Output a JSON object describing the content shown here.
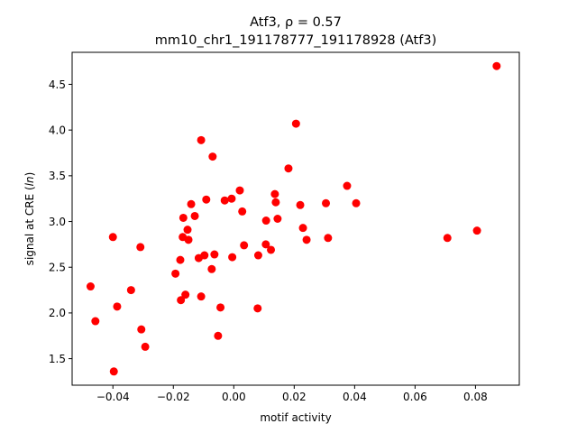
{
  "chart_data": {
    "type": "scatter",
    "title": "Atf3, ρ = 0.57",
    "subtitle": "mm10_chr1_191178777_191178928 (Atf3)",
    "xlabel": "motif activity",
    "ylabel": "signal at CRE (ln)",
    "xlim": [
      -0.0535,
      0.0945
    ],
    "ylim": [
      1.21,
      4.85
    ],
    "xticks": [
      -0.04,
      -0.02,
      0.0,
      0.02,
      0.04,
      0.06,
      0.08
    ],
    "xtick_labels": [
      "−0.04",
      "−0.02",
      "0.00",
      "0.02",
      "0.04",
      "0.06",
      "0.08"
    ],
    "yticks": [
      1.5,
      2.0,
      2.5,
      3.0,
      3.5,
      4.0,
      4.5
    ],
    "ytick_labels": [
      "1.5",
      "2.0",
      "2.5",
      "3.0",
      "3.5",
      "4.0",
      "4.5"
    ],
    "grid": false,
    "marker_color": "#ff0000",
    "series": [
      {
        "points": [
          {
            "x": -0.0474,
            "y": 2.29
          },
          {
            "x": -0.0458,
            "y": 1.91
          },
          {
            "x": -0.04,
            "y": 2.83
          },
          {
            "x": -0.0397,
            "y": 1.36
          },
          {
            "x": -0.0386,
            "y": 2.07
          },
          {
            "x": -0.034,
            "y": 2.25
          },
          {
            "x": -0.0309,
            "y": 2.72
          },
          {
            "x": -0.0306,
            "y": 1.82
          },
          {
            "x": -0.0293,
            "y": 1.63
          },
          {
            "x": -0.0193,
            "y": 2.43
          },
          {
            "x": -0.0177,
            "y": 2.58
          },
          {
            "x": -0.0175,
            "y": 2.14
          },
          {
            "x": -0.0169,
            "y": 2.83
          },
          {
            "x": -0.0167,
            "y": 3.04
          },
          {
            "x": -0.016,
            "y": 2.2
          },
          {
            "x": -0.0153,
            "y": 2.91
          },
          {
            "x": -0.015,
            "y": 2.8
          },
          {
            "x": -0.0141,
            "y": 3.19
          },
          {
            "x": -0.0129,
            "y": 3.06
          },
          {
            "x": -0.0116,
            "y": 2.6
          },
          {
            "x": -0.0108,
            "y": 3.89
          },
          {
            "x": -0.0108,
            "y": 2.18
          },
          {
            "x": -0.0097,
            "y": 2.63
          },
          {
            "x": -0.0091,
            "y": 3.24
          },
          {
            "x": -0.0073,
            "y": 2.48
          },
          {
            "x": -0.007,
            "y": 3.71
          },
          {
            "x": -0.0064,
            "y": 2.64
          },
          {
            "x": -0.0052,
            "y": 1.75
          },
          {
            "x": -0.0044,
            "y": 2.06
          },
          {
            "x": -0.003,
            "y": 3.23
          },
          {
            "x": -0.0007,
            "y": 3.25
          },
          {
            "x": -0.0005,
            "y": 2.61
          },
          {
            "x": 0.002,
            "y": 3.34
          },
          {
            "x": 0.0028,
            "y": 3.11
          },
          {
            "x": 0.0034,
            "y": 2.74
          },
          {
            "x": 0.0079,
            "y": 2.05
          },
          {
            "x": 0.0081,
            "y": 2.63
          },
          {
            "x": 0.0106,
            "y": 2.75
          },
          {
            "x": 0.0107,
            "y": 3.01
          },
          {
            "x": 0.0123,
            "y": 2.69
          },
          {
            "x": 0.0136,
            "y": 3.3
          },
          {
            "x": 0.0139,
            "y": 3.21
          },
          {
            "x": 0.0145,
            "y": 3.03
          },
          {
            "x": 0.0181,
            "y": 3.58
          },
          {
            "x": 0.0206,
            "y": 4.07
          },
          {
            "x": 0.022,
            "y": 3.18
          },
          {
            "x": 0.0229,
            "y": 2.93
          },
          {
            "x": 0.0241,
            "y": 2.8
          },
          {
            "x": 0.0305,
            "y": 3.2
          },
          {
            "x": 0.0312,
            "y": 2.82
          },
          {
            "x": 0.0375,
            "y": 3.39
          },
          {
            "x": 0.0405,
            "y": 3.2
          },
          {
            "x": 0.0707,
            "y": 2.82
          },
          {
            "x": 0.0805,
            "y": 2.9
          },
          {
            "x": 0.087,
            "y": 4.7
          }
        ]
      }
    ]
  }
}
